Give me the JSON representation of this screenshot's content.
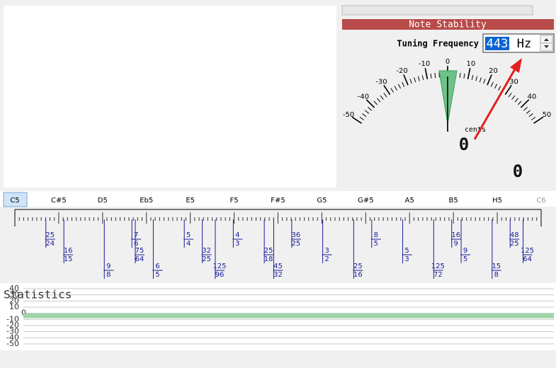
{
  "stability_header": "Note Stability",
  "tuning": {
    "label": "Tuning Frequency",
    "value": "443",
    "unit": "Hz"
  },
  "meter": {
    "ticks": [
      -50,
      -40,
      -30,
      -20,
      -10,
      0,
      10,
      20,
      30,
      40,
      50
    ],
    "needle": 0,
    "unit_label": "cents",
    "readout": "0"
  },
  "secondary_readout": "0",
  "notes": [
    "C5",
    "C#5",
    "D5",
    "Eb5",
    "E5",
    "F5",
    "F#5",
    "G5",
    "G#5",
    "A5",
    "B5",
    "H5",
    "C6"
  ],
  "ratios": [
    {
      "num": 25,
      "den": 24
    },
    {
      "num": 16,
      "den": 15
    },
    {
      "num": 9,
      "den": 8
    },
    {
      "num": 7,
      "den": 6
    },
    {
      "num": 75,
      "den": 64
    },
    {
      "num": 6,
      "den": 5
    },
    {
      "num": 5,
      "den": 4
    },
    {
      "num": 32,
      "den": 25
    },
    {
      "num": 125,
      "den": 96
    },
    {
      "num": 4,
      "den": 3
    },
    {
      "num": 25,
      "den": 18
    },
    {
      "num": 45,
      "den": 32
    },
    {
      "num": 36,
      "den": 25
    },
    {
      "num": 3,
      "den": 2
    },
    {
      "num": 25,
      "den": 16
    },
    {
      "num": 8,
      "den": 5
    },
    {
      "num": 5,
      "den": 3
    },
    {
      "num": 125,
      "den": 72
    },
    {
      "num": 16,
      "den": 9
    },
    {
      "num": 9,
      "den": 5
    },
    {
      "num": 15,
      "den": 8
    },
    {
      "num": 48,
      "den": 25
    },
    {
      "num": 125,
      "den": 64
    }
  ],
  "statistics": {
    "title": "Statistics",
    "yticks": [
      40,
      30,
      20,
      10,
      0,
      -10,
      -20,
      -30,
      -40,
      -50
    ],
    "value": 0
  }
}
